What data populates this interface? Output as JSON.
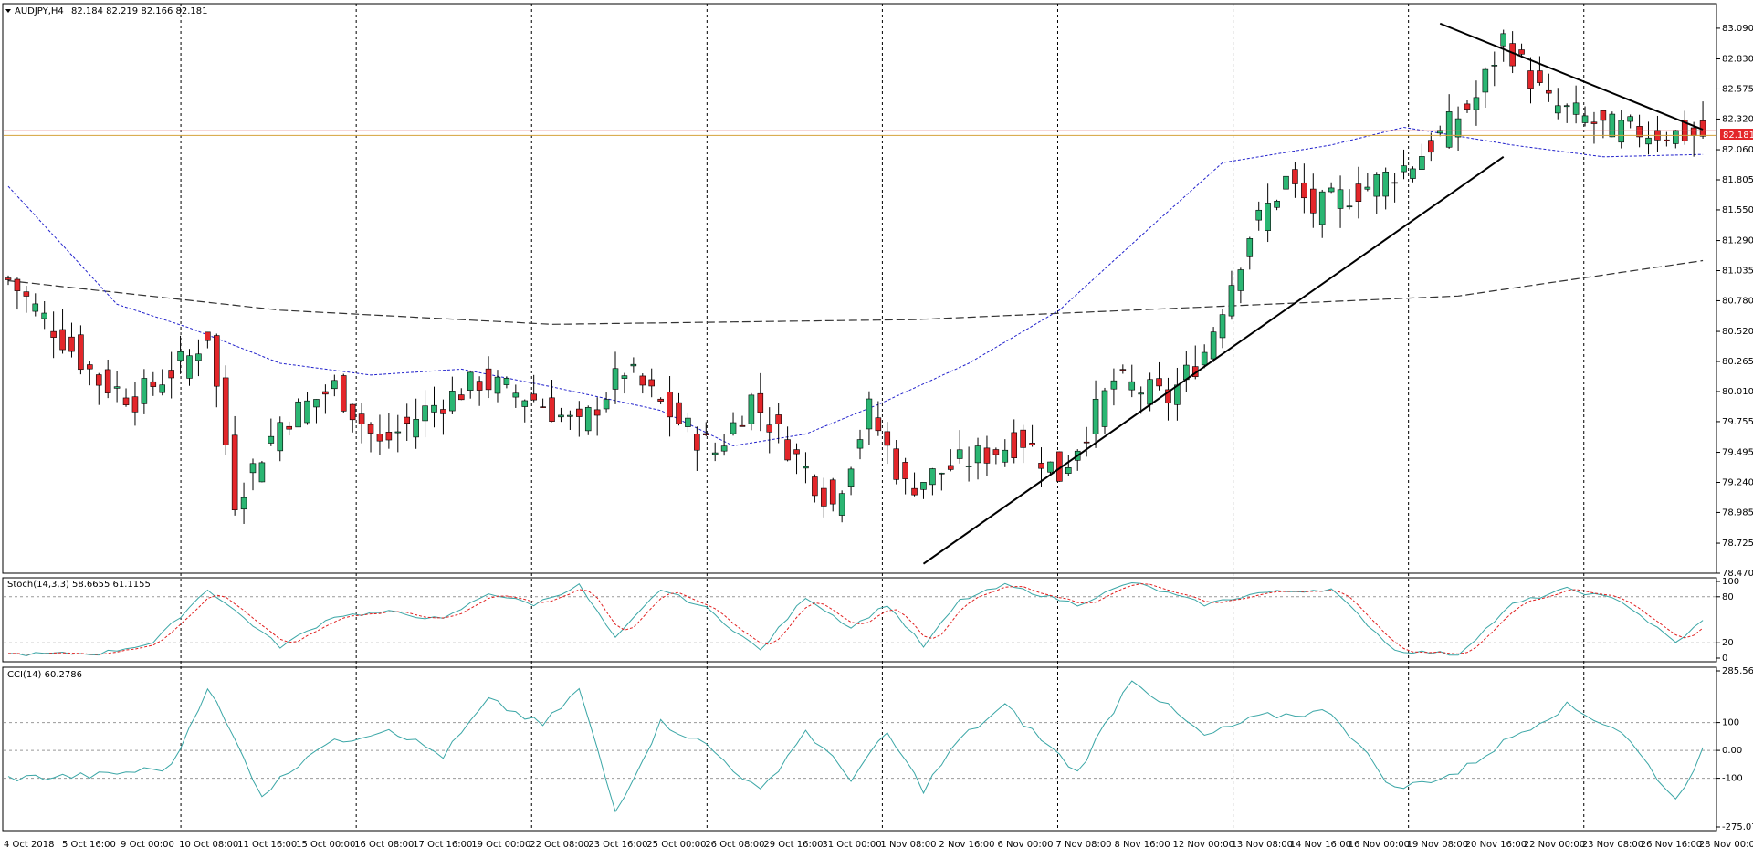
{
  "header": {
    "symbol": "AUDJPY,H4",
    "ohlc": "82.184 82.219 82.166 82.181"
  },
  "stoch": {
    "label": "Stoch(14,3,3) 58.6655 61.1155"
  },
  "cci": {
    "label": "CCI(14) 60.2786"
  },
  "current_price_label": "82.181",
  "colors": {
    "background": "#ffffff",
    "bull_candle": "#2bb673",
    "bear_candle": "#e3262a",
    "wick": "#000000",
    "ma_fast": "#2222cc",
    "ma_slow": "#333333",
    "stoch_main": "#3aa6a6",
    "stoch_signal": "#e02020",
    "cci_line": "#3aa6a6",
    "bid_line": "#e06060",
    "ask_line": "#d4a33a"
  },
  "chart_data": {
    "type": "candlestick",
    "symbol": "AUDJPY",
    "timeframe": "H4",
    "price_axis_ticks": [
      "83.090",
      "82.830",
      "82.575",
      "82.320",
      "82.060",
      "81.805",
      "81.550",
      "81.290",
      "81.035",
      "80.780",
      "80.520",
      "80.265",
      "80.010",
      "79.755",
      "79.495",
      "79.240",
      "78.985",
      "78.725",
      "78.470"
    ],
    "ylim": [
      78.47,
      83.19
    ],
    "time_axis_labels": [
      "4 Oct 2018",
      "5 Oct 16:00",
      "9 Oct 00:00",
      "10 Oct 08:00",
      "11 Oct 16:00",
      "15 Oct 00:00",
      "16 Oct 08:00",
      "17 Oct 16:00",
      "19 Oct 00:00",
      "22 Oct 08:00",
      "23 Oct 16:00",
      "25 Oct 00:00",
      "26 Oct 08:00",
      "29 Oct 16:00",
      "31 Oct 00:00",
      "1 Nov 08:00",
      "2 Nov 16:00",
      "6 Nov 00:00",
      "7 Nov 08:00",
      "8 Nov 16:00",
      "12 Nov 00:00",
      "13 Nov 08:00",
      "14 Nov 16:00",
      "16 Nov 00:00",
      "19 Nov 08:00",
      "20 Nov 16:00",
      "22 Nov 00:00",
      "23 Nov 08:00",
      "26 Nov 16:00",
      "28 Nov 00:00"
    ],
    "current_price": 82.181,
    "candle_count": 188,
    "close_path": [
      [
        0,
        80.96
      ],
      [
        5,
        80.55
      ],
      [
        10,
        80.1
      ],
      [
        14,
        79.95
      ],
      [
        20,
        80.3
      ],
      [
        22,
        80.5
      ],
      [
        25,
        79.1
      ],
      [
        30,
        79.75
      ],
      [
        36,
        80.05
      ],
      [
        41,
        79.55
      ],
      [
        46,
        79.85
      ],
      [
        52,
        80.1
      ],
      [
        58,
        79.95
      ],
      [
        63,
        79.7
      ],
      [
        68,
        80.2
      ],
      [
        74,
        79.75
      ],
      [
        78,
        79.5
      ],
      [
        82,
        79.95
      ],
      [
        87,
        79.45
      ],
      [
        91,
        79.05
      ],
      [
        95,
        79.85
      ],
      [
        99,
        79.2
      ],
      [
        105,
        79.4
      ],
      [
        112,
        79.6
      ],
      [
        116,
        79.3
      ],
      [
        122,
        80.1
      ],
      [
        128,
        79.95
      ],
      [
        132,
        80.35
      ],
      [
        137,
        81.35
      ],
      [
        141,
        81.8
      ],
      [
        144,
        81.55
      ],
      [
        150,
        81.75
      ],
      [
        155,
        81.95
      ],
      [
        162,
        82.5
      ],
      [
        165,
        83.0
      ],
      [
        170,
        82.45
      ],
      [
        176,
        82.25
      ],
      [
        183,
        82.2
      ],
      [
        187,
        82.18
      ]
    ],
    "ma_fast_path": [
      [
        0,
        81.75
      ],
      [
        12,
        80.75
      ],
      [
        20,
        80.55
      ],
      [
        30,
        80.25
      ],
      [
        40,
        80.15
      ],
      [
        50,
        80.2
      ],
      [
        60,
        80.05
      ],
      [
        72,
        79.85
      ],
      [
        80,
        79.55
      ],
      [
        88,
        79.65
      ],
      [
        96,
        79.9
      ],
      [
        106,
        80.25
      ],
      [
        116,
        80.7
      ],
      [
        126,
        81.4
      ],
      [
        134,
        81.95
      ],
      [
        146,
        82.1
      ],
      [
        154,
        82.25
      ],
      [
        166,
        82.1
      ],
      [
        176,
        82.0
      ],
      [
        187,
        82.02
      ]
    ],
    "ma_slow_path": [
      [
        0,
        80.95
      ],
      [
        30,
        80.7
      ],
      [
        60,
        80.58
      ],
      [
        100,
        80.62
      ],
      [
        130,
        80.72
      ],
      [
        160,
        80.82
      ],
      [
        187,
        81.12
      ]
    ],
    "trendlines": [
      {
        "from": [
          101,
          78.55
        ],
        "to": [
          165,
          82.0
        ]
      },
      {
        "from": [
          158,
          83.13
        ],
        "to": [
          187,
          82.23
        ]
      }
    ],
    "indicators": [
      {
        "name": "Stoch(14,3,3)",
        "main": 58.6655,
        "signal": 61.1155,
        "ylim": [
          0,
          100
        ],
        "ticks": [
          "100",
          "80",
          "20",
          "0"
        ],
        "path": [
          [
            0,
            5
          ],
          [
            10,
            6
          ],
          [
            16,
            20
          ],
          [
            22,
            90
          ],
          [
            30,
            15
          ],
          [
            36,
            55
          ],
          [
            42,
            60
          ],
          [
            48,
            50
          ],
          [
            53,
            85
          ],
          [
            58,
            70
          ],
          [
            63,
            95
          ],
          [
            67,
            25
          ],
          [
            72,
            90
          ],
          [
            77,
            65
          ],
          [
            83,
            10
          ],
          [
            88,
            80
          ],
          [
            93,
            40
          ],
          [
            97,
            70
          ],
          [
            101,
            15
          ],
          [
            105,
            75
          ],
          [
            110,
            95
          ],
          [
            118,
            70
          ],
          [
            124,
            99
          ],
          [
            132,
            70
          ],
          [
            138,
            85
          ],
          [
            146,
            90
          ],
          [
            153,
            10
          ],
          [
            160,
            5
          ],
          [
            166,
            70
          ],
          [
            172,
            90
          ],
          [
            178,
            75
          ],
          [
            184,
            20
          ],
          [
            188,
            58
          ]
        ]
      },
      {
        "name": "CCI(14)",
        "value": 60.2786,
        "ylim": [
          -275.0763,
          285.5654
        ],
        "ticks": [
          "285.5654",
          "100",
          "0.00",
          "-100",
          "-275.0763"
        ],
        "path": [
          [
            0,
            -100
          ],
          [
            10,
            -90
          ],
          [
            18,
            -60
          ],
          [
            22,
            230
          ],
          [
            28,
            -160
          ],
          [
            34,
            10
          ],
          [
            42,
            80
          ],
          [
            48,
            -20
          ],
          [
            53,
            180
          ],
          [
            59,
            90
          ],
          [
            63,
            220
          ],
          [
            67,
            -220
          ],
          [
            72,
            100
          ],
          [
            77,
            20
          ],
          [
            83,
            -150
          ],
          [
            88,
            70
          ],
          [
            93,
            -100
          ],
          [
            97,
            60
          ],
          [
            101,
            -140
          ],
          [
            105,
            40
          ],
          [
            110,
            160
          ],
          [
            118,
            -80
          ],
          [
            124,
            260
          ],
          [
            132,
            50
          ],
          [
            138,
            120
          ],
          [
            146,
            140
          ],
          [
            153,
            -140
          ],
          [
            160,
            -80
          ],
          [
            166,
            50
          ],
          [
            172,
            160
          ],
          [
            178,
            70
          ],
          [
            184,
            -180
          ],
          [
            188,
            60
          ]
        ]
      }
    ]
  }
}
